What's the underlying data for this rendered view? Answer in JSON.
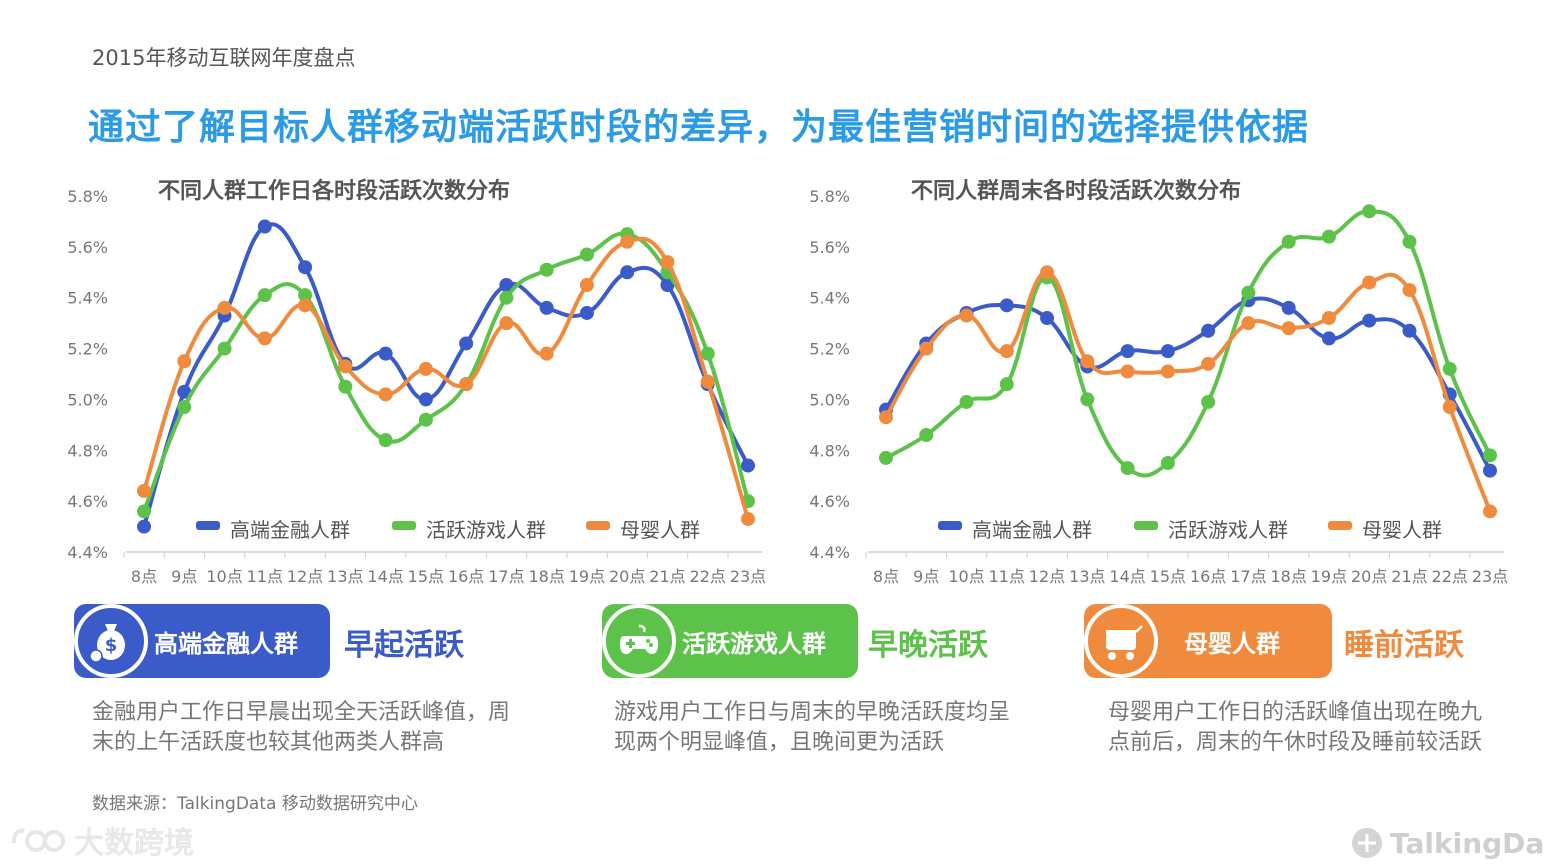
{
  "header": {
    "subtitle": "2015年移动互联网年度盘点",
    "title": "通过了解目标人群移动端活跃时段的差异，为最佳营销时间的选择提供依据"
  },
  "chart_data": [
    {
      "type": "line",
      "title": "不同人群工作日各时段活跃次数分布",
      "categories": [
        "8点",
        "9点",
        "10点",
        "11点",
        "12点",
        "13点",
        "14点",
        "15点",
        "16点",
        "17点",
        "18点",
        "19点",
        "20点",
        "21点",
        "22点",
        "23点"
      ],
      "y_ticks": [
        "4.4%",
        "4.6%",
        "4.8%",
        "5.0%",
        "5.2%",
        "5.4%",
        "5.6%",
        "5.8%"
      ],
      "ylim": [
        4.4,
        5.8
      ],
      "legend_position": "bottom",
      "series": [
        {
          "name": "高端金融人群",
          "color": "#3b5bc8",
          "values": [
            4.5,
            5.03,
            5.33,
            5.68,
            5.52,
            5.14,
            5.18,
            5.0,
            5.22,
            5.45,
            5.36,
            5.34,
            5.5,
            5.45,
            5.06,
            4.74
          ]
        },
        {
          "name": "活跃游戏人群",
          "color": "#5cc24a",
          "values": [
            4.56,
            4.97,
            5.2,
            5.41,
            5.41,
            5.05,
            4.84,
            4.92,
            5.06,
            5.4,
            5.51,
            5.57,
            5.65,
            5.5,
            5.18,
            4.6
          ]
        },
        {
          "name": "母婴人群",
          "color": "#f08a3c",
          "values": [
            4.64,
            5.15,
            5.36,
            5.24,
            5.37,
            5.13,
            5.02,
            5.12,
            5.06,
            5.3,
            5.18,
            5.45,
            5.62,
            5.54,
            5.07,
            4.53
          ]
        }
      ]
    },
    {
      "type": "line",
      "title": "不同人群周末各时段活跃次数分布",
      "categories": [
        "8点",
        "9点",
        "10点",
        "11点",
        "12点",
        "13点",
        "14点",
        "15点",
        "16点",
        "17点",
        "18点",
        "19点",
        "20点",
        "21点",
        "22点",
        "23点"
      ],
      "y_ticks": [
        "4.4%",
        "4.6%",
        "4.8%",
        "5.0%",
        "5.2%",
        "5.4%",
        "5.6%",
        "5.8%"
      ],
      "ylim": [
        4.4,
        5.8
      ],
      "legend_position": "bottom",
      "series": [
        {
          "name": "高端金融人群",
          "color": "#3b5bc8",
          "values": [
            4.96,
            5.22,
            5.34,
            5.37,
            5.32,
            5.13,
            5.19,
            5.19,
            5.27,
            5.39,
            5.36,
            5.24,
            5.31,
            5.27,
            5.02,
            4.72
          ]
        },
        {
          "name": "活跃游戏人群",
          "color": "#5cc24a",
          "values": [
            4.77,
            4.86,
            4.99,
            5.06,
            5.48,
            5.0,
            4.73,
            4.75,
            4.99,
            5.42,
            5.62,
            5.64,
            5.74,
            5.62,
            5.12,
            4.78
          ]
        },
        {
          "name": "母婴人群",
          "color": "#f08a3c",
          "values": [
            4.93,
            5.2,
            5.33,
            5.19,
            5.5,
            5.15,
            5.11,
            5.11,
            5.14,
            5.3,
            5.28,
            5.32,
            5.46,
            5.43,
            4.97,
            4.56
          ]
        }
      ]
    }
  ],
  "personas": [
    {
      "name": "高端金融人群",
      "tag": "早起活跃",
      "color": "#3b5bc8",
      "icon": "money-bag-icon",
      "desc_line1": "金融用户工作日早晨出现全天活跃峰值，周",
      "desc_line2": "末的上午活跃度也较其他两类人群高"
    },
    {
      "name": "活跃游戏人群",
      "tag": "早晚活跃",
      "color": "#5cc24a",
      "icon": "gamepad-icon",
      "desc_line1": "游戏用户工作日与周末的早晚活跃度均呈",
      "desc_line2": "现两个明显峰值，且晚间更为活跃"
    },
    {
      "name": "母婴人群",
      "tag": "睡前活跃",
      "color": "#f08a3c",
      "icon": "baby-stroller-icon",
      "desc_line1": "母婴用户工作日的活跃峰值出现在晚九",
      "desc_line2": "点前后，周末的午休时段及睡前较活跃"
    }
  ],
  "footer": {
    "source": "数据来源：TalkingData 移动数据研究中心",
    "watermark_left": "大数跨境",
    "watermark_right": "TalkingData"
  }
}
